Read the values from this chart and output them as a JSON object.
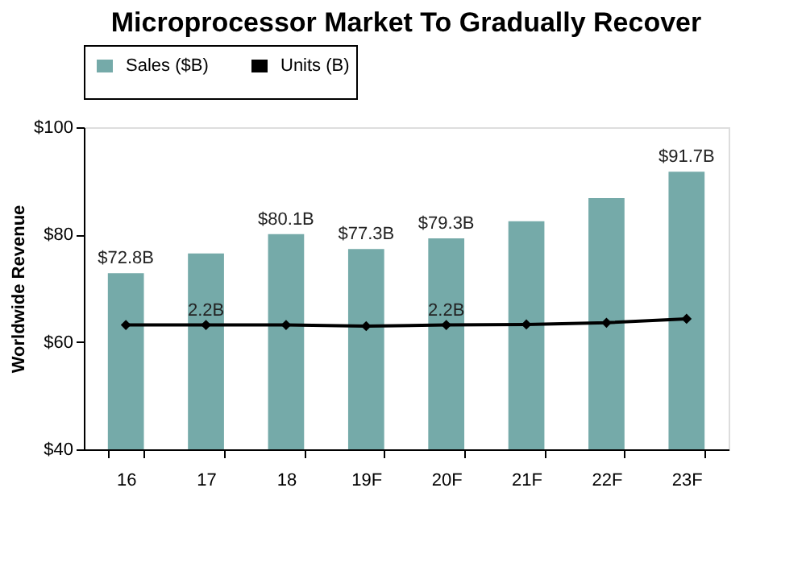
{
  "chart_data": {
    "type": "bar",
    "title": "Microprocessor Market To Gradually Recover",
    "ylabel": "Worldwide Revenue",
    "categories": [
      "16",
      "17",
      "18",
      "19F",
      "20F",
      "21F",
      "22F",
      "23F"
    ],
    "series": [
      {
        "name": "Sales ($B)",
        "color": "#75aaa9",
        "values": [
          72.8,
          76.5,
          80.1,
          77.3,
          79.3,
          82.5,
          86.8,
          91.7
        ],
        "value_labels": [
          "$72.8B",
          null,
          "$80.1B",
          "$77.3B",
          "$79.3B",
          null,
          null,
          "$91.7B"
        ]
      },
      {
        "name": "Units (B)",
        "type": "line",
        "axis": "y2",
        "color": "#000000",
        "marker": "diamond",
        "values": [
          2.2,
          2.2,
          2.2,
          2.18,
          2.2,
          2.21,
          2.24,
          2.31
        ],
        "value_labels": [
          null,
          "2.2B",
          null,
          null,
          "2.2B",
          null,
          null,
          null
        ]
      }
    ],
    "ylim": [
      40,
      100
    ],
    "yticks": [
      {
        "value": 40,
        "label": "$40"
      },
      {
        "value": 60,
        "label": "$60"
      },
      {
        "value": 80,
        "label": "$80"
      },
      {
        "value": 100,
        "label": "$100"
      }
    ],
    "y2lim": [
      0,
      5.7
    ],
    "grid": false,
    "legend": "top"
  }
}
